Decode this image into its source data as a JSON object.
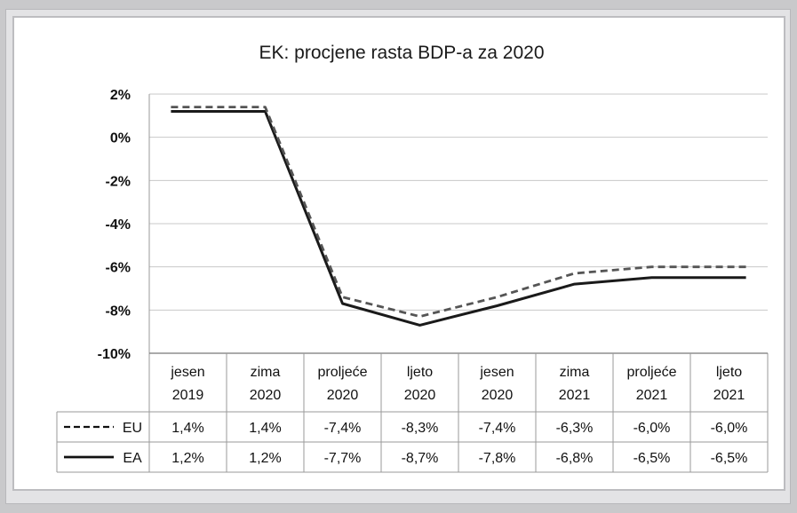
{
  "chart_data": {
    "type": "line",
    "title": "EK: procjene rasta BDP-a za 2020",
    "categories": [
      [
        "jesen",
        "2019"
      ],
      [
        "zima",
        "2020"
      ],
      [
        "proljeće",
        "2020"
      ],
      [
        "ljeto",
        "2020"
      ],
      [
        "jesen",
        "2020"
      ],
      [
        "zima",
        "2021"
      ],
      [
        "proljeće",
        "2021"
      ],
      [
        "ljeto",
        "2021"
      ]
    ],
    "y_ticks": [
      "2%",
      "0%",
      "-2%",
      "-4%",
      "-6%",
      "-8%",
      "-10%"
    ],
    "ylim": [
      -10,
      2
    ],
    "series": [
      {
        "name": "EU",
        "style": "dashed",
        "values": [
          1.4,
          1.4,
          -7.4,
          -8.3,
          -7.4,
          -6.3,
          -6.0,
          -6.0
        ],
        "labels": [
          "1,4%",
          "1,4%",
          "-7,4%",
          "-8,3%",
          "-7,4%",
          "-6,3%",
          "-6,0%",
          "-6,0%"
        ]
      },
      {
        "name": "EA",
        "style": "solid",
        "values": [
          1.2,
          1.2,
          -7.7,
          -8.7,
          -7.8,
          -6.8,
          -6.5,
          -6.5
        ],
        "labels": [
          "1,2%",
          "1,2%",
          "-7,7%",
          "-8,7%",
          "-7,8%",
          "-6,8%",
          "-6,5%",
          "-6,5%"
        ]
      }
    ],
    "grid": true,
    "legend": "data-table"
  }
}
